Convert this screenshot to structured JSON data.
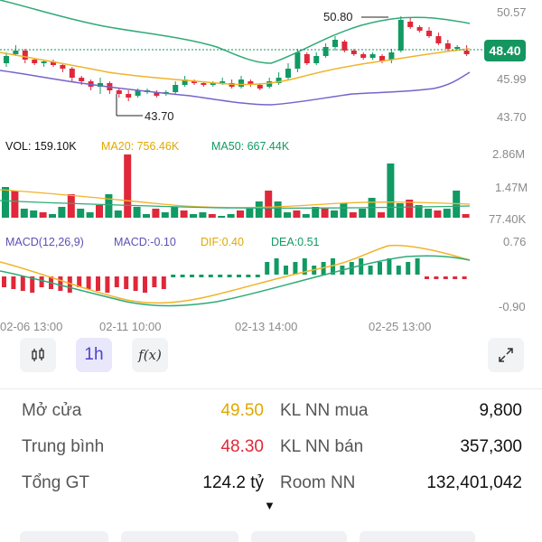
{
  "price_axis": {
    "top": "50.57",
    "mid": "45.99",
    "bottom": "43.70",
    "current": "48.40"
  },
  "highlights": {
    "high": "50.80",
    "low": "43.70"
  },
  "volume": {
    "vol_label": "VOL: 159.10K",
    "ma20_label": "MA20: 756.46K",
    "ma50_label": "MA50: 667.44K",
    "axis": [
      "2.86M",
      "1.47M",
      "77.40K"
    ]
  },
  "macd": {
    "title": "MACD(12,26,9)",
    "macd_label": "MACD:-0.10",
    "dif_label": "DIF:0.40",
    "dea_label": "DEA:0.51",
    "axis": [
      "0.76",
      "-0.90"
    ]
  },
  "time_axis": [
    "02-06 13:00",
    "02-11 10:00",
    "02-13 14:00",
    "02-25 13:00"
  ],
  "toolbar": {
    "interval": "1h",
    "indicator_icon": "f(x)"
  },
  "colors": {
    "up": "#119a63",
    "down": "#e0283a",
    "ma20": "#f0b429",
    "bb_mid": "#f0b429",
    "bb_lower": "#7565c9",
    "bb_upper": "#2faa77",
    "price_tag": "#15955f"
  },
  "stats": {
    "open_label": "Mở cửa",
    "open_value": "49.50",
    "avg_label": "Trung bình",
    "avg_value": "48.30",
    "total_label": "Tổng GT",
    "total_value": "124.2 tỷ",
    "foreign_buy_label": "KL NN mua",
    "foreign_buy_value": "9,800",
    "foreign_sell_label": "KL NN bán",
    "foreign_sell_value": "357,300",
    "room_label": "Room NN",
    "room_value": "132,401,042"
  },
  "expand_icon": "chevron-down-icon"
}
